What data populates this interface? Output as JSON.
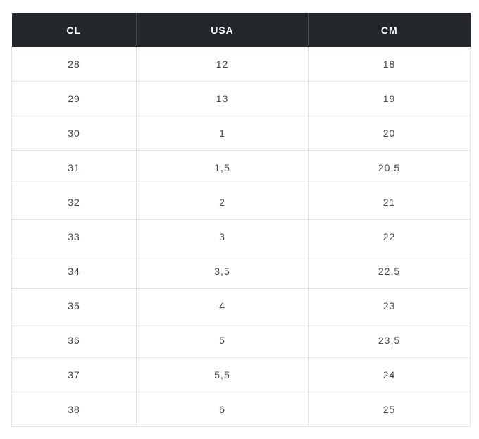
{
  "table": {
    "headers": [
      "CL",
      "USA",
      "CM"
    ],
    "rows": [
      [
        "28",
        "12",
        "18"
      ],
      [
        "29",
        "13",
        "19"
      ],
      [
        "30",
        "1",
        "20"
      ],
      [
        "31",
        "1,5",
        "20,5"
      ],
      [
        "32",
        "2",
        "21"
      ],
      [
        "33",
        "3",
        "22"
      ],
      [
        "34",
        "3,5",
        "22,5"
      ],
      [
        "35",
        "4",
        "23"
      ],
      [
        "36",
        "5",
        "23,5"
      ],
      [
        "37",
        "5,5",
        "24"
      ],
      [
        "38",
        "6",
        "25"
      ]
    ]
  },
  "colors": {
    "header_bg": "#23262b",
    "header_text": "#ffffff",
    "cell_text": "#444444",
    "border": "#e3e3e3"
  }
}
